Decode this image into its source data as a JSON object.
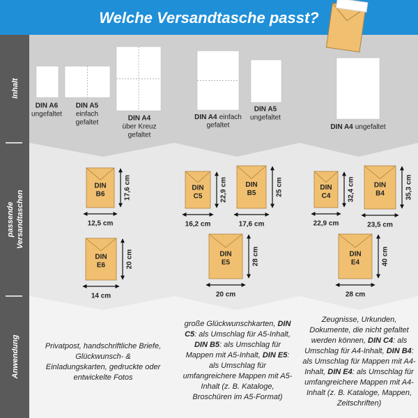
{
  "header": {
    "title": "Welche Versandtasche passt?"
  },
  "row_labels": [
    [
      "Inhalt"
    ],
    [
      "passende",
      "Versandtaschen"
    ],
    [
      "Anwendung"
    ]
  ],
  "columns": [
    {
      "papers": [
        {
          "name": "DIN A6",
          "notes": [
            "ungefaltet"
          ]
        },
        {
          "name": "DIN A5",
          "notes": [
            "einfach",
            "gefaltet"
          ]
        },
        {
          "name": "DIN A4",
          "notes": [
            "über Kreuz",
            "gefaltet"
          ]
        }
      ],
      "envelopes": [
        {
          "label": [
            "DIN",
            "B6"
          ],
          "width": "12,5 cm",
          "height": "17,6 cm"
        },
        {
          "label": [
            "DIN",
            "E6"
          ],
          "width": "14 cm",
          "height": "20 cm"
        }
      ],
      "application": [
        "Privatpost, handschriftliche Briefe, Glückwunsch- & Einladungskarten, gedruckte oder entwickelte Fotos"
      ]
    },
    {
      "papers": [
        {
          "name": "DIN A4",
          "notes": [
            "einfach",
            "gefaltet"
          ]
        },
        {
          "name": "DIN A5",
          "notes": [
            "ungefaltet"
          ]
        }
      ],
      "envelopes": [
        {
          "label": [
            "DIN",
            "C5"
          ],
          "width": "16,2 cm",
          "height": "22,9 cm"
        },
        {
          "label": [
            "DIN",
            "B5"
          ],
          "width": "17,6 cm",
          "height": "25 cm"
        },
        {
          "label": [
            "DIN",
            "E5"
          ],
          "width": "20 cm",
          "height": "28 cm"
        }
      ],
      "application": [
        "große Glückwunschkarten, ",
        "DIN C5",
        ": als Umschlag für A5-Inhalt, ",
        "DIN B5",
        ": als Umschlag für Mappen mit A5-Inhalt, ",
        "DIN E5",
        ": als Umschlag für umfangreichere Mappen mit A5-Inhalt (z. B. Kataloge, Broschüren im A5-Format)"
      ]
    },
    {
      "papers": [
        {
          "name": "DIN A4",
          "notes": [
            "ungefaltet"
          ]
        }
      ],
      "envelopes": [
        {
          "label": [
            "DIN",
            "C4"
          ],
          "width": "22,9 cm",
          "height": "32,4 cm"
        },
        {
          "label": [
            "DIN",
            "B4"
          ],
          "width": "23,5 cm",
          "height": "35,3 cm"
        },
        {
          "label": [
            "DIN",
            "E4"
          ],
          "width": "28 cm",
          "height": "40 cm"
        }
      ],
      "application": [
        "Zeugnisse, Urkunden, Dokumente, die nicht gefaltet werden können, ",
        "DIN C4",
        ": als Umschlag für A4-Inhalt, ",
        "DIN B4",
        ": als Umschlag für Mappen mit A4-Inhalt, ",
        "DIN E4",
        ": als Umschlag für umfangreichere Mappen mit A4-Inhalt (z. B. Kataloge, Mappen, Zeitschriften)"
      ]
    }
  ]
}
